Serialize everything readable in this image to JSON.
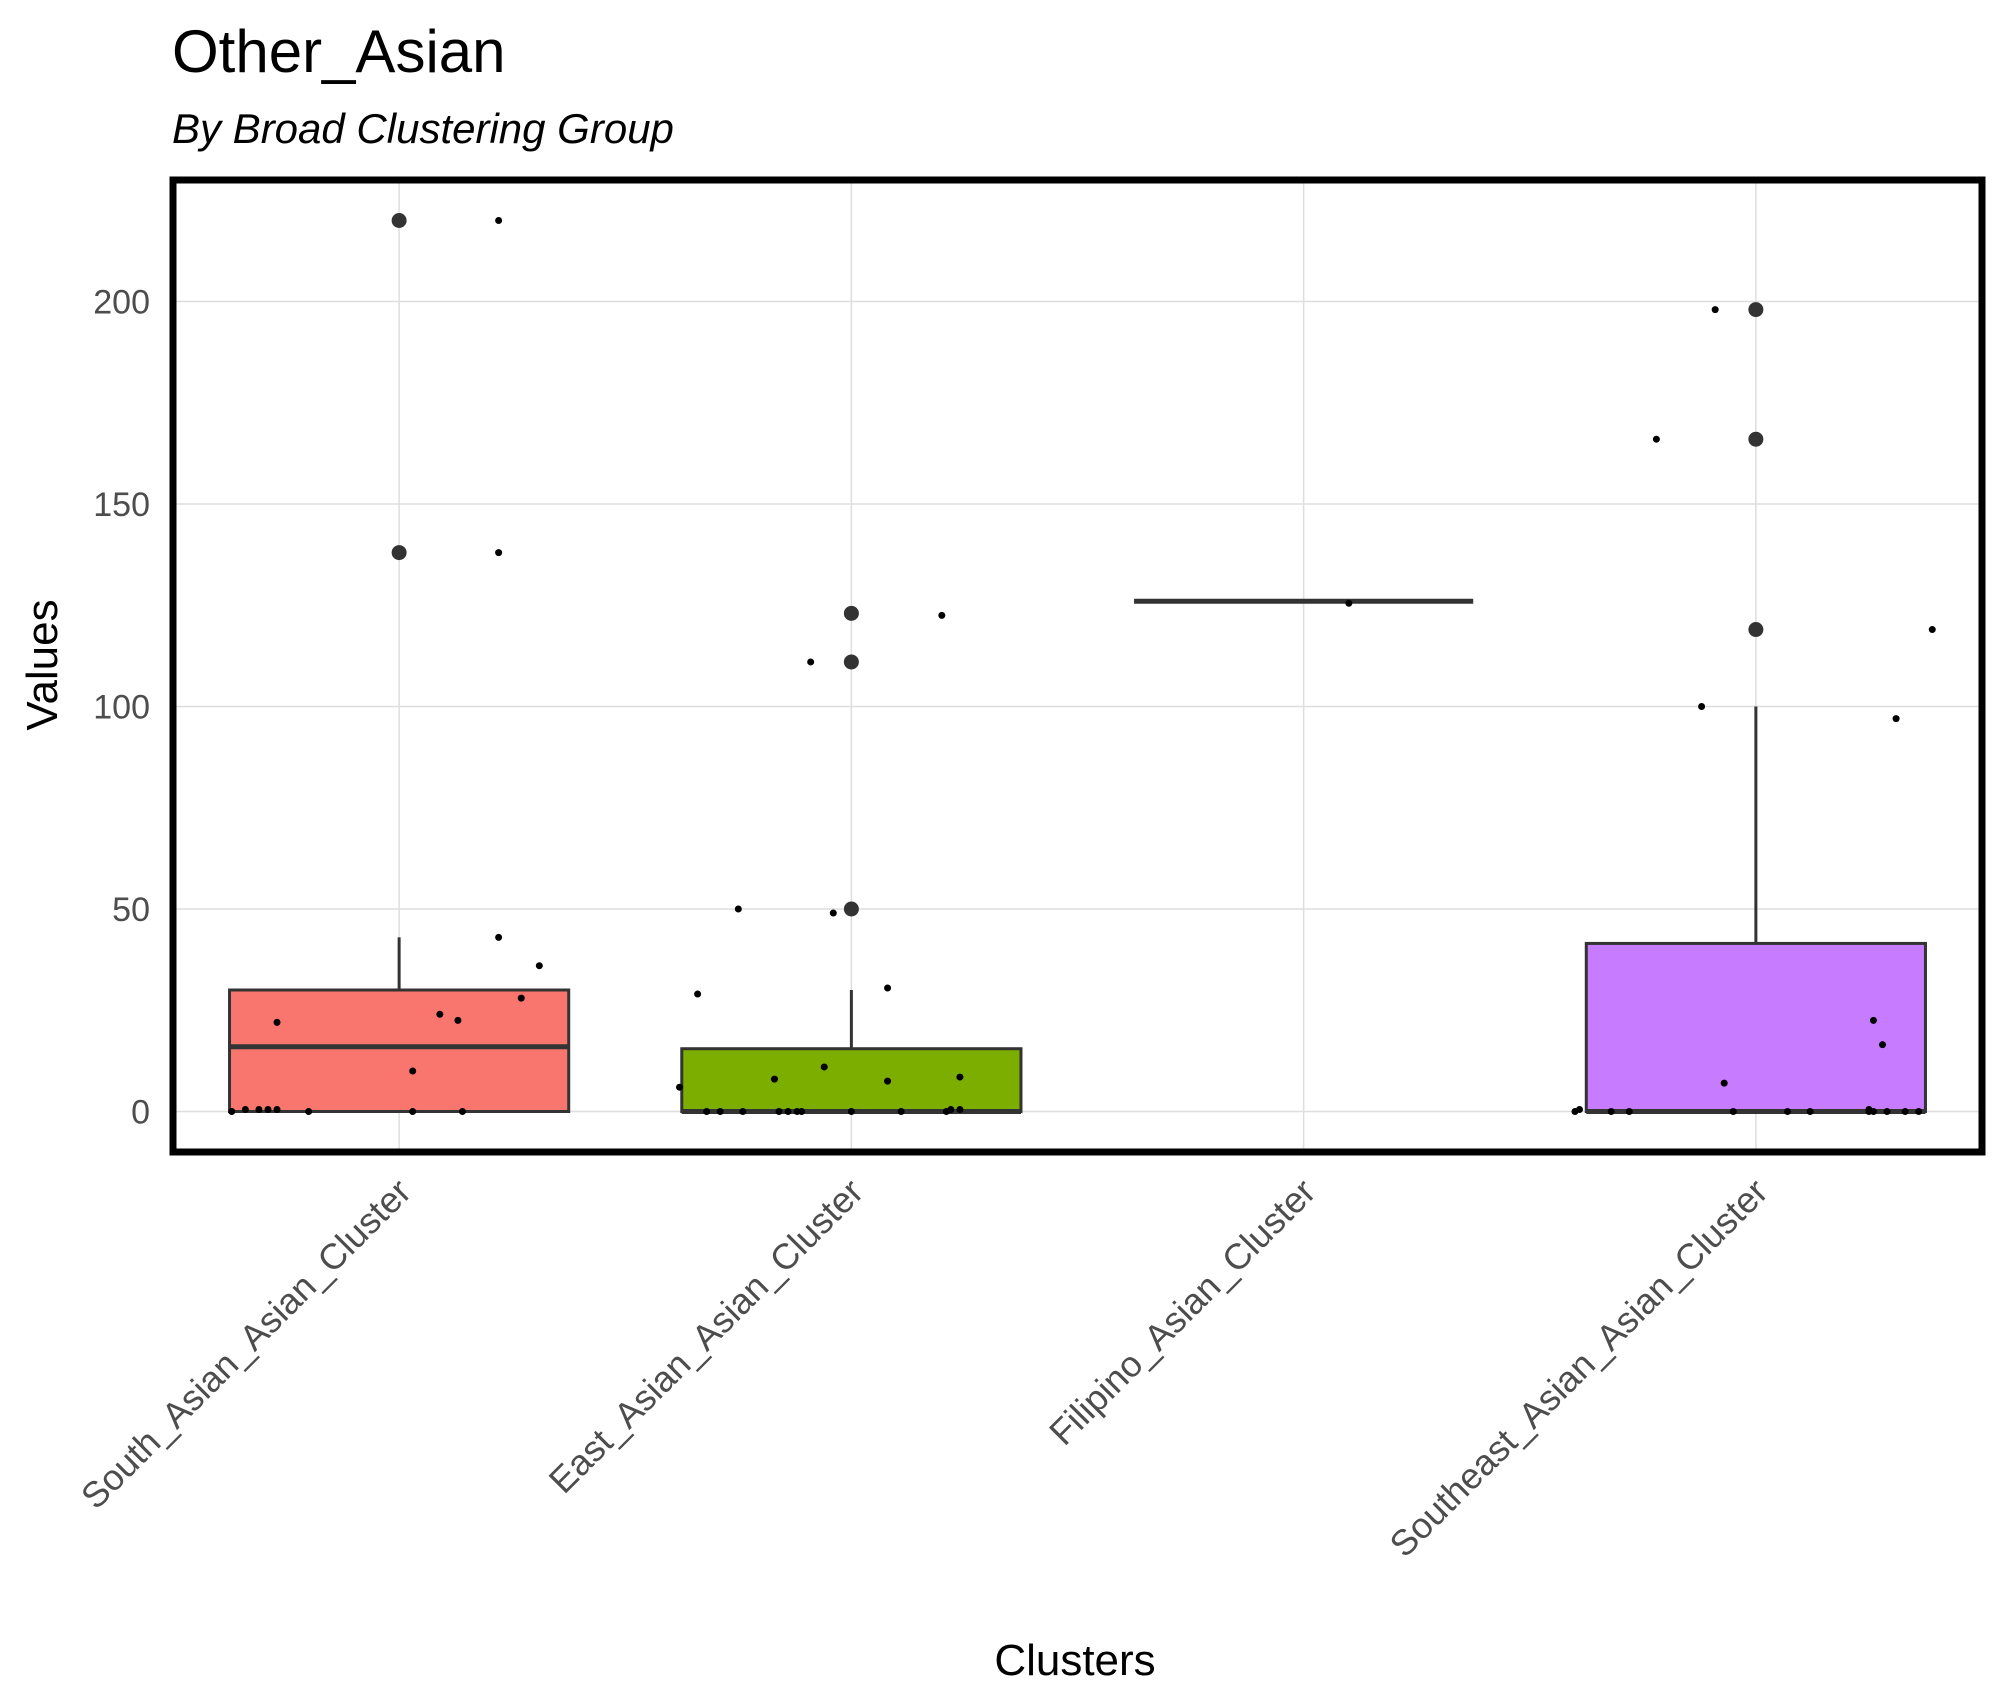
{
  "chart_data": {
    "type": "box",
    "title": "Other_Asian",
    "subtitle": "By Broad Clustering Group",
    "xlabel": "Clusters",
    "ylabel": "Values",
    "ylim": [
      -10,
      230
    ],
    "yticks": [
      0,
      50,
      100,
      150,
      200
    ],
    "grid": true,
    "legend": "none",
    "categories": [
      "South_Asian_Asian_Cluster",
      "East_Asian_Asian_Cluster",
      "Filipino_Asian_Cluster",
      "Southeast_Asian_Asian_Cluster"
    ],
    "colors": [
      "#F8766D",
      "#7CAE00",
      "#00BFC4",
      "#C77CFF"
    ],
    "boxes": [
      {
        "min": 0,
        "q1": 0,
        "median": 16,
        "q3": 30,
        "max": 43,
        "outliers": [
          138,
          220
        ]
      },
      {
        "min": 0,
        "q1": 0,
        "median": 0,
        "q3": 15.5,
        "max": 30,
        "outliers": [
          50,
          111,
          123
        ]
      },
      {
        "min": 126,
        "q1": 126,
        "median": 126,
        "q3": 126,
        "max": 126,
        "outliers": []
      },
      {
        "min": 0,
        "q1": 0,
        "median": 0,
        "q3": 41.5,
        "max": 100,
        "outliers": [
          119,
          166,
          198
        ]
      }
    ],
    "jitter_points": [
      [
        {
          "dx": -0.37,
          "y": 0
        },
        {
          "dx": -0.34,
          "y": 0.5
        },
        {
          "dx": -0.31,
          "y": 0.5
        },
        {
          "dx": -0.29,
          "y": 0.5
        },
        {
          "dx": -0.27,
          "y": 0.5
        },
        {
          "dx": -0.27,
          "y": 22
        },
        {
          "dx": -0.2,
          "y": 0
        },
        {
          "dx": 0.03,
          "y": 0
        },
        {
          "dx": 0.03,
          "y": 10
        },
        {
          "dx": 0.09,
          "y": 24
        },
        {
          "dx": 0.13,
          "y": 22.5
        },
        {
          "dx": 0.14,
          "y": 0
        },
        {
          "dx": 0.22,
          "y": 220
        },
        {
          "dx": 0.22,
          "y": 138
        },
        {
          "dx": 0.22,
          "y": 43
        },
        {
          "dx": 0.27,
          "y": 28
        },
        {
          "dx": 0.31,
          "y": 36
        }
      ],
      [
        {
          "dx": -0.38,
          "y": 6
        },
        {
          "dx": -0.34,
          "y": 29
        },
        {
          "dx": -0.32,
          "y": 0
        },
        {
          "dx": -0.29,
          "y": 0
        },
        {
          "dx": -0.24,
          "y": 0
        },
        {
          "dx": -0.25,
          "y": 50
        },
        {
          "dx": -0.17,
          "y": 8
        },
        {
          "dx": -0.16,
          "y": 0
        },
        {
          "dx": -0.14,
          "y": 0
        },
        {
          "dx": -0.12,
          "y": 0
        },
        {
          "dx": -0.11,
          "y": 0
        },
        {
          "dx": -0.09,
          "y": 111
        },
        {
          "dx": -0.06,
          "y": 11
        },
        {
          "dx": -0.04,
          "y": 49
        },
        {
          "dx": 0.0,
          "y": 0
        },
        {
          "dx": 0.08,
          "y": 30.5
        },
        {
          "dx": 0.08,
          "y": 7.5
        },
        {
          "dx": 0.11,
          "y": 0
        },
        {
          "dx": 0.2,
          "y": 122.5
        },
        {
          "dx": 0.21,
          "y": 0
        },
        {
          "dx": 0.22,
          "y": 0.5
        },
        {
          "dx": 0.24,
          "y": 0.5
        },
        {
          "dx": 0.24,
          "y": 8.5
        }
      ],
      [
        {
          "dx": 0.1,
          "y": 125.5
        }
      ],
      [
        {
          "dx": -0.4,
          "y": 0
        },
        {
          "dx": -0.39,
          "y": 0.5
        },
        {
          "dx": -0.32,
          "y": 0
        },
        {
          "dx": -0.28,
          "y": 0
        },
        {
          "dx": -0.22,
          "y": 166
        },
        {
          "dx": -0.12,
          "y": 100
        },
        {
          "dx": -0.09,
          "y": 198
        },
        {
          "dx": -0.07,
          "y": 7
        },
        {
          "dx": -0.05,
          "y": 0
        },
        {
          "dx": 0.07,
          "y": 0
        },
        {
          "dx": 0.12,
          "y": 0
        },
        {
          "dx": 0.25,
          "y": 0
        },
        {
          "dx": 0.25,
          "y": 0.5
        },
        {
          "dx": 0.26,
          "y": 0
        },
        {
          "dx": 0.26,
          "y": 22.5
        },
        {
          "dx": 0.28,
          "y": 16.5
        },
        {
          "dx": 0.29,
          "y": 0
        },
        {
          "dx": 0.31,
          "y": 97
        },
        {
          "dx": 0.33,
          "y": 0
        },
        {
          "dx": 0.36,
          "y": 0
        },
        {
          "dx": 0.39,
          "y": 119
        }
      ]
    ]
  }
}
